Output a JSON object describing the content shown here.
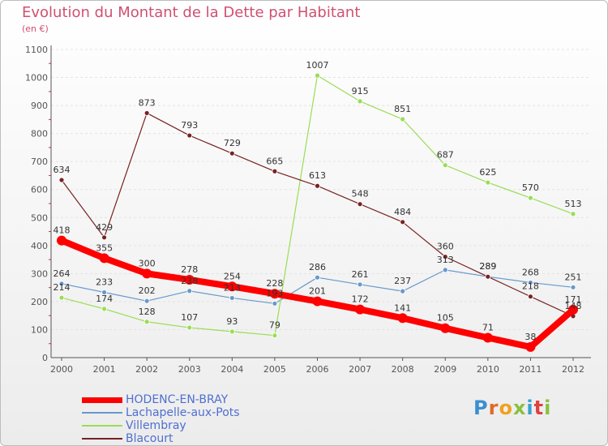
{
  "header": {
    "title": "Evolution du Montant de la Dette par Habitant",
    "unit": "(en €)"
  },
  "logo": {
    "text": "Proxiti",
    "letters": [
      "P",
      "r",
      "o",
      "x",
      "i",
      "t",
      "i"
    ]
  },
  "colors": {
    "title": "#d05070",
    "axis": "#555555",
    "legend_text": "#4f6fd0",
    "gridline": "#e3e3e3"
  },
  "chart_data": {
    "type": "line",
    "title": "Evolution du Montant de la Dette par Habitant",
    "ylabel": "(en €)",
    "xlabel": "",
    "categories": [
      "2000",
      "2001",
      "2002",
      "2003",
      "2004",
      "2005",
      "2006",
      "2007",
      "2008",
      "2009",
      "2010",
      "2011",
      "2012"
    ],
    "ylim": [
      0,
      1100
    ],
    "yticks": [
      0,
      100,
      200,
      300,
      400,
      500,
      600,
      700,
      800,
      900,
      1000,
      1100
    ],
    "grid": true,
    "legend_position": "bottom-left",
    "series": [
      {
        "name": "HODENC-EN-BRAY",
        "color": "#ff0000",
        "emphasis": true,
        "values": [
          418,
          355,
          300,
          278,
          254,
          228,
          201,
          172,
          141,
          105,
          71,
          38,
          171
        ]
      },
      {
        "name": "Lachapelle-aux-Pots",
        "color": "#6699cc",
        "emphasis": false,
        "values": [
          264,
          233,
          202,
          238,
          213,
          193,
          286,
          261,
          237,
          313,
          289,
          268,
          251
        ]
      },
      {
        "name": "Villembray",
        "color": "#99dd55",
        "emphasis": false,
        "values": [
          214,
          174,
          128,
          107,
          93,
          79,
          1007,
          915,
          851,
          687,
          625,
          570,
          513
        ]
      },
      {
        "name": "Blacourt",
        "color": "#772222",
        "emphasis": false,
        "values": [
          634,
          429,
          873,
          793,
          729,
          665,
          613,
          548,
          484,
          360,
          289,
          218,
          148
        ]
      }
    ]
  }
}
